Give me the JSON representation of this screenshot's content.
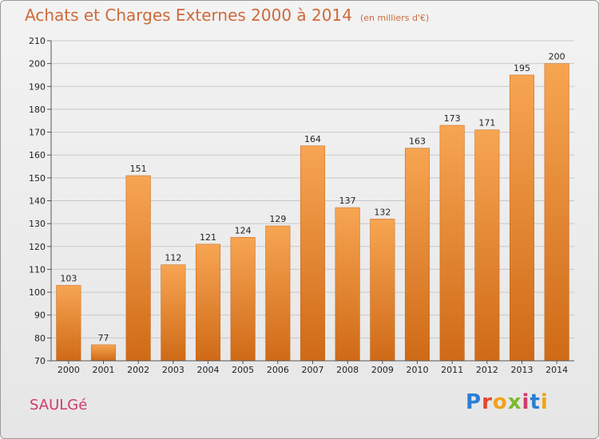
{
  "header": {
    "title": "Achats et Charges Externes 2000 à 2014",
    "subtitle": "(en milliers d'€)"
  },
  "footer": {
    "commune": "SAULGé",
    "logo": "Proxiti"
  },
  "colors": {
    "bar_top": "#f7a552",
    "bar_bottom": "#cf6a17",
    "title": "#cc6a3a",
    "commune": "#d13a6a"
  },
  "chart_data": {
    "type": "bar",
    "title": "Achats et Charges Externes 2000 à 2014",
    "subtitle": "(en milliers d'€)",
    "xlabel": "",
    "ylabel": "",
    "categories": [
      "2000",
      "2001",
      "2002",
      "2003",
      "2004",
      "2005",
      "2006",
      "2007",
      "2008",
      "2009",
      "2010",
      "2011",
      "2012",
      "2013",
      "2014"
    ],
    "values": [
      103,
      77,
      151,
      112,
      121,
      124,
      129,
      164,
      137,
      132,
      163,
      173,
      171,
      195,
      200
    ],
    "ylim": [
      70,
      210
    ],
    "yticks": [
      70,
      80,
      90,
      100,
      110,
      120,
      130,
      140,
      150,
      160,
      170,
      180,
      190,
      200,
      210
    ],
    "grid": true,
    "data_labels": true
  }
}
